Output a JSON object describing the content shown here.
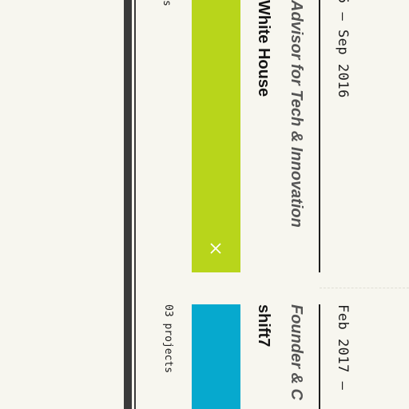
{
  "timeline": {
    "entries": [
      {
        "date_range": "5 — Sep 2016",
        "role": "Advisor for Tech & Innovation",
        "organization": "White House",
        "project_count": "s",
        "card_color": "#b8d51b",
        "close_glyph": "×",
        "close_icon": "close-icon"
      },
      {
        "date_range": "Feb 2017 —",
        "role": "Founder & C",
        "organization": "shift7",
        "project_count": "03 projects",
        "card_color": "#06a9ce"
      }
    ]
  },
  "colors": {
    "background": "#f7f6ef",
    "rail": "#3a3a3a",
    "text": "#1e1e1e",
    "role_text": "#555555"
  }
}
